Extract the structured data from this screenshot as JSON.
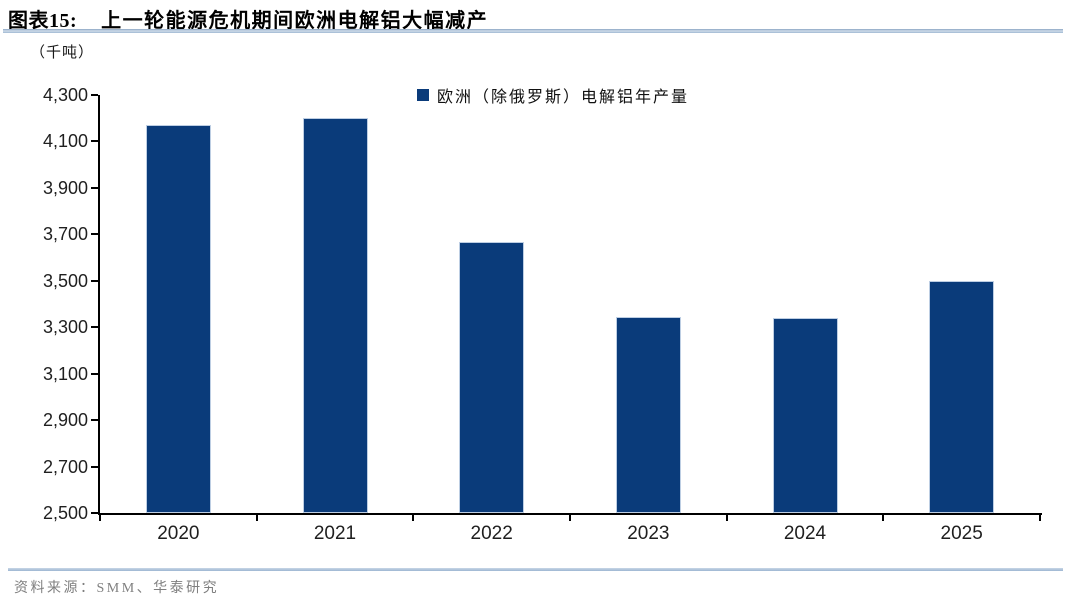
{
  "header": {
    "title_prefix": "图表15:",
    "title": "上一轮能源危机期间欧洲电解铝大幅减产"
  },
  "chart_data": {
    "type": "bar",
    "title": "上一轮能源危机期间欧洲电解铝大幅减产",
    "unit_label": "（千吨）",
    "legend": [
      "欧洲（除俄罗斯）电解铝年产量"
    ],
    "legend_position": "top-center",
    "categories": [
      "2020",
      "2021",
      "2022",
      "2023",
      "2024",
      "2025"
    ],
    "values": [
      4170,
      4200,
      3668,
      3345,
      3338,
      3500
    ],
    "ylabel": "千吨",
    "ylim": [
      2500,
      4300
    ],
    "ytick_step": 200,
    "ytick_labels": [
      "2,500",
      "2,700",
      "2,900",
      "3,100",
      "3,300",
      "3,500",
      "3,700",
      "3,900",
      "4,100",
      "4,300"
    ],
    "grid": false,
    "bar_color": "#0a3b7a",
    "axis_color": "#000000"
  },
  "footer": {
    "source_label": "资料来源：SMM、华泰研究"
  }
}
